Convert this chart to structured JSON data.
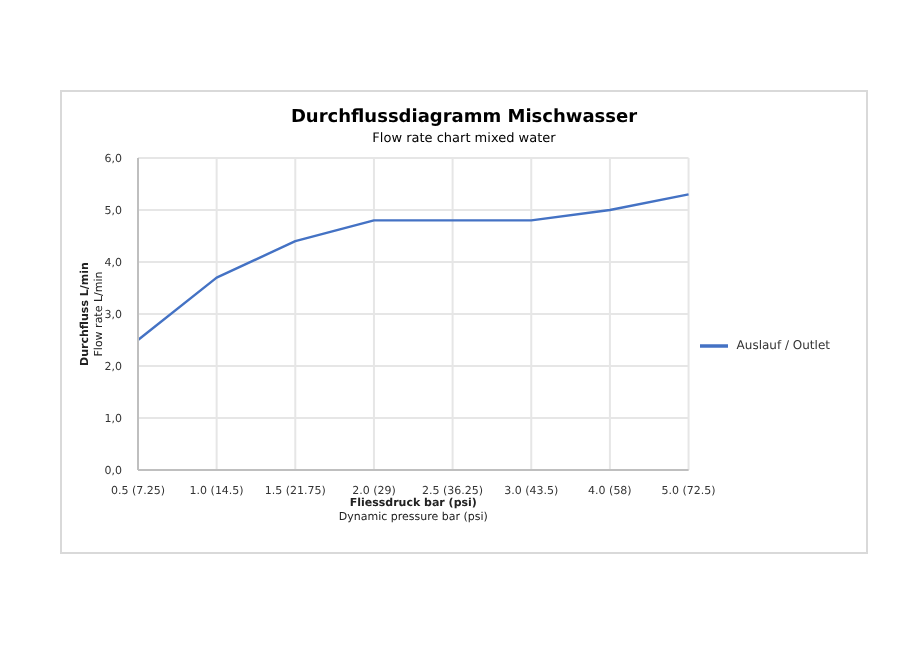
{
  "chart_data": {
    "type": "line",
    "title": "Durchflussdiagramm Mischwasser",
    "subtitle": "Flow rate chart mixed water",
    "xlabel": "Fliessdruck bar (psi)\nDynamic pressure bar (psi)",
    "ylabel": "Durchfluss L/min\nFlow rate L/min",
    "categories": [
      "0.5 (7.25)",
      "1.0 (14.5)",
      "1.5 (21.75)",
      "2.0 (29)",
      "2.5 (36.25)",
      "3.0 (43.5)",
      "4.0 (58)",
      "5.0 (72.5)"
    ],
    "series": [
      {
        "name": "Auslauf / Outlet",
        "color": "#4472c4",
        "values": [
          2.5,
          3.7,
          4.4,
          4.8,
          4.8,
          4.8,
          5.0,
          5.3
        ]
      }
    ],
    "ylim": [
      0,
      6
    ],
    "yticks": [
      {
        "value": 0,
        "label": "0,0"
      },
      {
        "value": 1,
        "label": "1,0"
      },
      {
        "value": 2,
        "label": "2,0"
      },
      {
        "value": 3,
        "label": "3,0"
      },
      {
        "value": 4,
        "label": "4,0"
      },
      {
        "value": 5,
        "label": "5,0"
      },
      {
        "value": 6,
        "label": "6,0"
      }
    ],
    "grid": true,
    "legend": "right",
    "marker": "none",
    "line_style": "solid"
  }
}
